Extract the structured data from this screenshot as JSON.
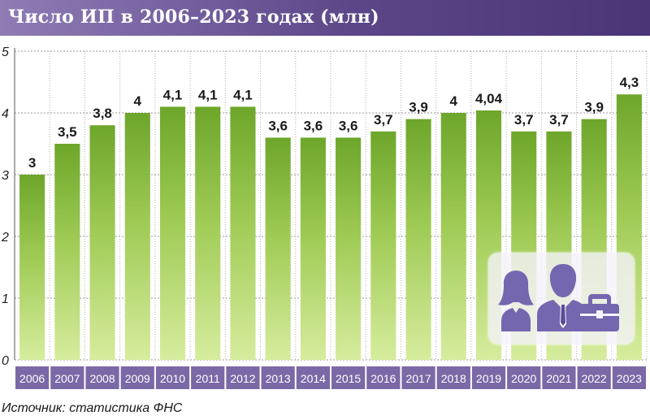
{
  "title": "Число ИП в 2006–2023 годах (млн)",
  "source": "Источник: статистика ФНС",
  "icons": [
    "people-icon",
    "briefcase-icon"
  ],
  "colors": {
    "title_bar": "#5b4688",
    "bar_light": "#d7ec9e",
    "bar_dark": "#6da62a",
    "year_strip": "#7b68a6",
    "icon": "#7566b0"
  },
  "chart_data": {
    "type": "bar",
    "categories": [
      "2006",
      "2007",
      "2008",
      "2009",
      "2010",
      "2011",
      "2012",
      "2013",
      "2014",
      "2015",
      "2016",
      "2017",
      "2018",
      "2019",
      "2020",
      "2021",
      "2022",
      "2023"
    ],
    "values": [
      3,
      3.5,
      3.8,
      4,
      4.1,
      4.1,
      4.1,
      3.6,
      3.6,
      3.6,
      3.7,
      3.9,
      4,
      4.04,
      3.7,
      3.7,
      3.9,
      4.3
    ],
    "value_labels": [
      "3",
      "3,5",
      "3,8",
      "4",
      "4,1",
      "4,1",
      "4,1",
      "3,6",
      "3,6",
      "3,6",
      "3,7",
      "3,9",
      "4",
      "4,04",
      "3,7",
      "3,7",
      "3,9",
      "4,3"
    ],
    "yticks": [
      "0",
      "1",
      "2",
      "3",
      "4",
      "5"
    ],
    "ylim": [
      0,
      5
    ],
    "grid": true
  }
}
